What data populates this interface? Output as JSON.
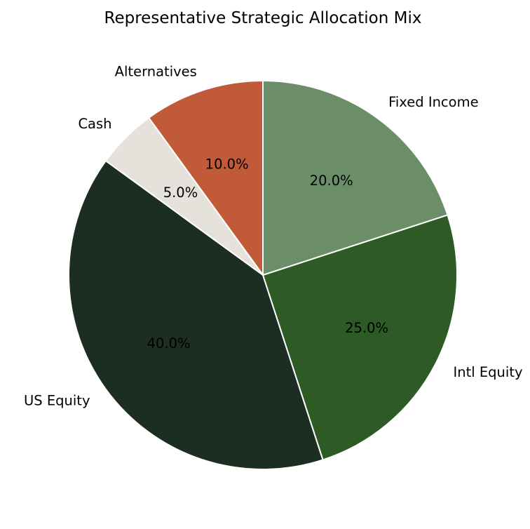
{
  "chart_data": {
    "type": "pie",
    "title": "Representative Strategic Allocation Mix",
    "categories": [
      "US Equity",
      "Intl Equity",
      "Fixed Income",
      "Alternatives",
      "Cash"
    ],
    "values": [
      40.0,
      25.0,
      20.0,
      10.0,
      5.0
    ],
    "value_labels": [
      "40.0%",
      "25.0%",
      "20.0%",
      "10.0%",
      "5.0%"
    ],
    "colors": [
      "#1c2e22",
      "#2e5a26",
      "#6b8e69",
      "#c05a38",
      "#e5e2dc"
    ],
    "start_angle_deg": 144,
    "direction": "counterclockwise",
    "edge_color": "#ffffff",
    "legend": "none"
  }
}
